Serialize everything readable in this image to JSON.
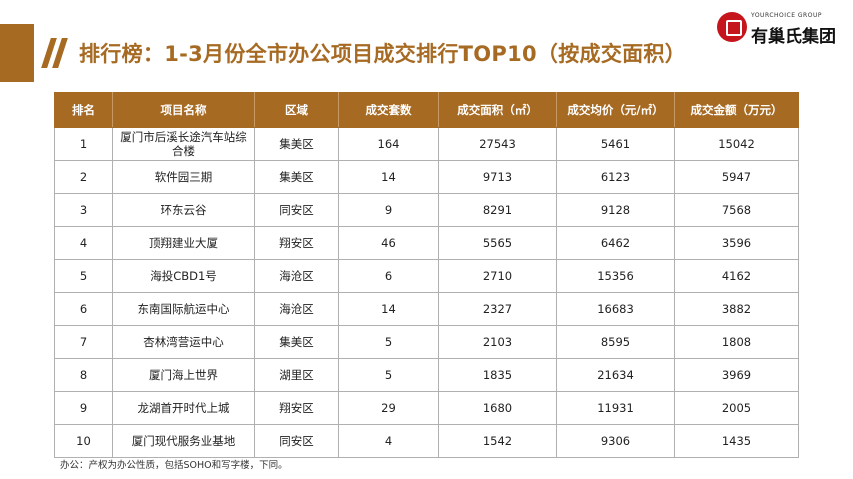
{
  "header": {
    "title": "排行榜：1-3月份全市办公项目成交排行TOP10（按成交面积）"
  },
  "logo": {
    "en": "YOURCHOICE GROUP",
    "cn": "有巢氏集团"
  },
  "table": {
    "columns": [
      "排名",
      "项目名称",
      "区域",
      "成交套数",
      "成交面积（㎡）",
      "成交均价（元/㎡）",
      "成交金额（万元）"
    ],
    "rows": [
      [
        "1",
        "厦门市后溪长途汽车站综合楼",
        "集美区",
        "164",
        "27543",
        "5461",
        "15042"
      ],
      [
        "2",
        "软件园三期",
        "集美区",
        "14",
        "9713",
        "6123",
        "5947"
      ],
      [
        "3",
        "环东云谷",
        "同安区",
        "9",
        "8291",
        "9128",
        "7568"
      ],
      [
        "4",
        "顶翔建业大厦",
        "翔安区",
        "46",
        "5565",
        "6462",
        "3596"
      ],
      [
        "5",
        "海投CBD1号",
        "海沧区",
        "6",
        "2710",
        "15356",
        "4162"
      ],
      [
        "6",
        "东南国际航运中心",
        "海沧区",
        "14",
        "2327",
        "16683",
        "3882"
      ],
      [
        "7",
        "杏林湾营运中心",
        "集美区",
        "5",
        "2103",
        "8595",
        "1808"
      ],
      [
        "8",
        "厦门海上世界",
        "湖里区",
        "5",
        "1835",
        "21634",
        "3969"
      ],
      [
        "9",
        "龙湖首开时代上城",
        "翔安区",
        "29",
        "1680",
        "11931",
        "2005"
      ],
      [
        "10",
        "厦门现代服务业基地",
        "同安区",
        "4",
        "1542",
        "9306",
        "1435"
      ]
    ]
  },
  "footnote": "办公：产权为办公性质，包括SOHO和写字楼，下同。",
  "colors": {
    "accent": "#a66a23",
    "logo_red": "#c4161c"
  },
  "icons": {
    "logo_mark": "logo-icon"
  }
}
